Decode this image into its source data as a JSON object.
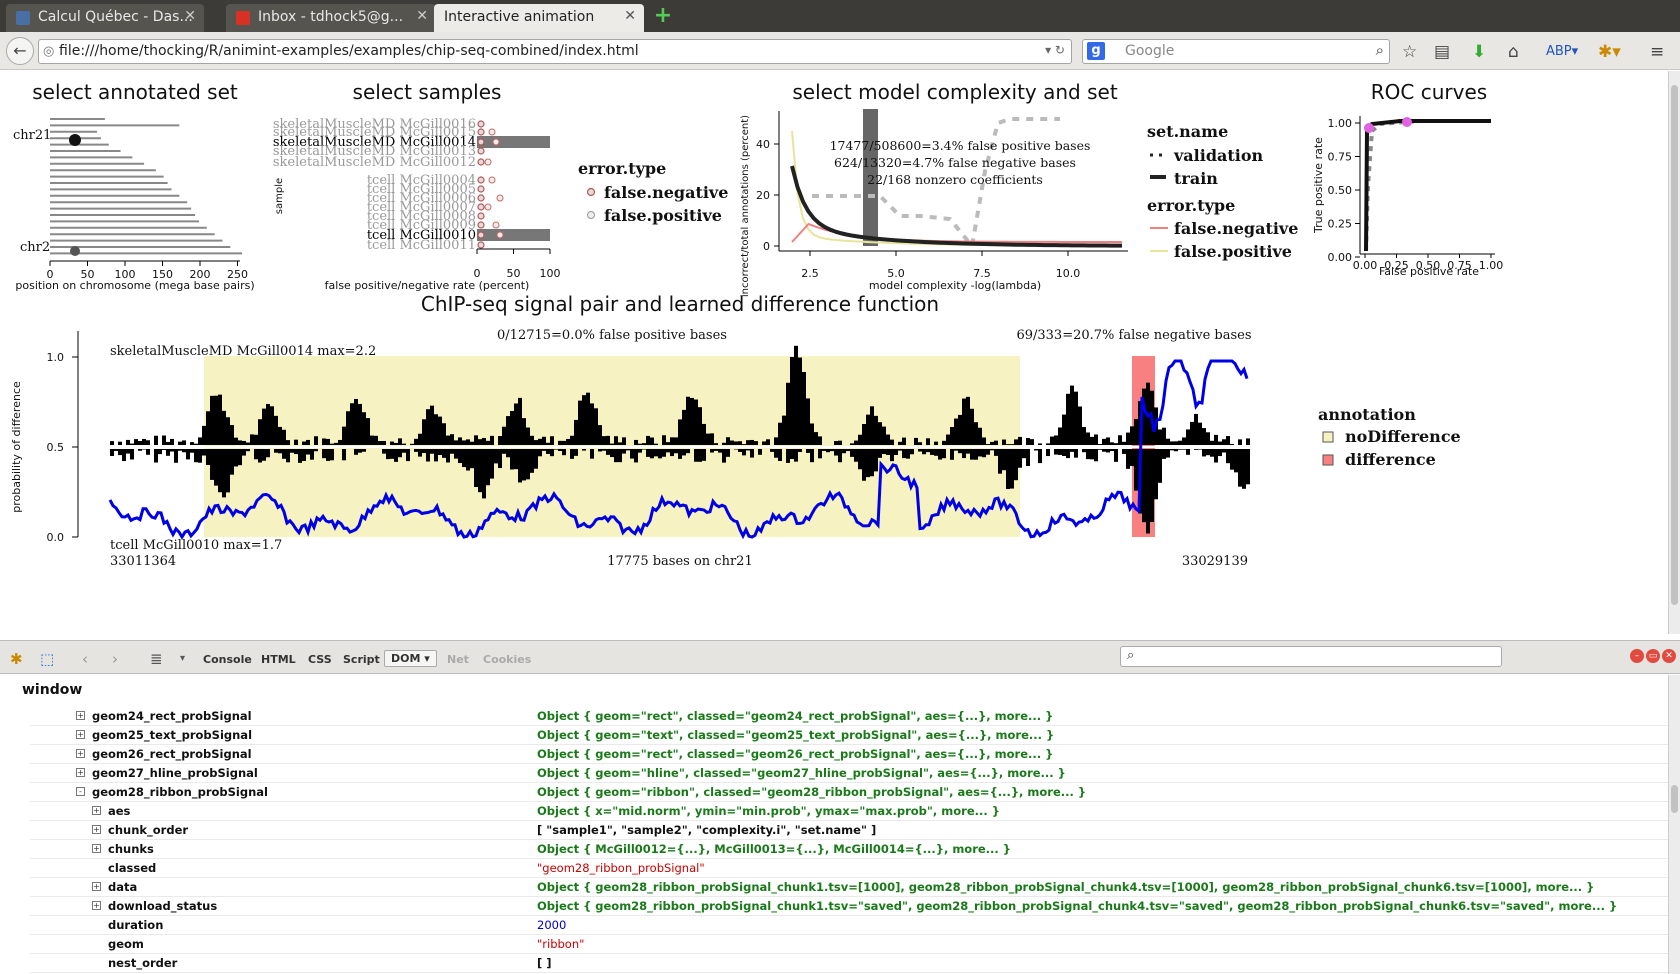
{
  "tabs": [
    {
      "label": "Calcul Québec - Das...",
      "active": false
    },
    {
      "label": "Inbox - tdhock5@g...",
      "active": false
    },
    {
      "label": "Interactive animation",
      "active": true
    }
  ],
  "nav": {
    "url": "file:///home/thocking/R/animint-examples/examples/chip-seq-combined/index.html",
    "search_placeholder": "Google"
  },
  "viz": {
    "annot_title": "select annotated set",
    "annot_xlabel": "position on chromosome (mega base pairs)",
    "annot_labels": [
      "chr21",
      "chr2"
    ],
    "annot_ticks": [
      "0",
      "50",
      "100",
      "150",
      "200",
      "250"
    ],
    "samples_title": "select samples",
    "samples_xlabel": "false positive/negative rate (percent)",
    "samples_ylabel": "sample",
    "samples_ticks": [
      "0",
      "50",
      "100"
    ],
    "sample_names": [
      "skeletalMuscleMD McGill0016",
      "skeletalMuscleMD McGill0015",
      "skeletalMuscleMD McGill0014",
      "skeletalMuscleMD McGill0013",
      "skeletalMuscleMD McGill0012",
      "tcell McGill0004",
      "tcell McGill0005",
      "tcell McGill0006",
      "tcell McGill0007",
      "tcell McGill0008",
      "tcell McGill0009",
      "tcell McGill0010",
      "tcell McGill0011"
    ],
    "error_legend_title": "error.type",
    "error_types": [
      "false.negative",
      "false.positive"
    ],
    "model_title": "select model complexity and set",
    "model_xlabel": "model complexity -log(lambda)",
    "model_ylabel": "incorrect/total annotations (percent)",
    "model_xticks": [
      "2.5",
      "5.0",
      "7.5",
      "10.0"
    ],
    "model_yticks": [
      "0",
      "20",
      "40"
    ],
    "model_text": [
      "17477/508600=3.4% false positive bases",
      "624/13320=4.7% false negative bases",
      "22/168 nonzero coefficients"
    ],
    "set_legend_title": "set.name",
    "set_names": [
      "validation",
      "train"
    ],
    "roc_title": "ROC curves",
    "roc_xlabel": "False positive rate",
    "roc_ylabel": "True positive rate",
    "roc_xticks": [
      "0.00",
      "0.25",
      "0.50",
      "0.75",
      "1.00"
    ],
    "roc_yticks": [
      "0.00",
      "0.25",
      "0.50",
      "0.75",
      "1.00"
    ],
    "signal_title": "ChIP-seq signal pair and learned difference function",
    "signal_fp_text": "0/12715=0.0% false positive bases",
    "signal_fn_text": "69/333=20.7% false negative bases",
    "signal_top_label": "skeletalMuscleMD McGill0014 max=2.2",
    "signal_bottom_label": "tcell McGill0010 max=1.7",
    "signal_left_pos": "33011364",
    "signal_right_pos": "33029139",
    "signal_bases_text": "17775 bases on chr21",
    "signal_ylabel": "probability of difference",
    "signal_yticks": [
      "0.0",
      "0.5",
      "1.0"
    ],
    "annotation_legend_title": "annotation",
    "annotation_types": [
      "noDifference",
      "difference"
    ]
  },
  "colors": {
    "noDifference": "#f6f2c1",
    "difference": "#f88080",
    "prob_line": "#0000e6",
    "false_negative": "#f08080",
    "false_positive": "#f2f2a0"
  },
  "devtools": {
    "tabs": [
      "Console",
      "HTML",
      "CSS",
      "Script",
      "DOM",
      "Net",
      "Cookies"
    ],
    "selected_tab": "DOM",
    "root_label": "window"
  },
  "dom_rows": [
    {
      "depth": 0,
      "toggle": "+",
      "key": "geom24_rect_probSignal",
      "type": "obj",
      "value": "Object { geom=\"rect\",  classed=\"geom24_rect_probSignal\",  aes={...},  more... }"
    },
    {
      "depth": 0,
      "toggle": "+",
      "key": "geom25_text_probSignal",
      "type": "obj",
      "value": "Object { geom=\"text\",  classed=\"geom25_text_probSignal\",  aes={...},  more... }"
    },
    {
      "depth": 0,
      "toggle": "+",
      "key": "geom26_rect_probSignal",
      "type": "obj",
      "value": "Object { geom=\"rect\",  classed=\"geom26_rect_probSignal\",  aes={...},  more... }"
    },
    {
      "depth": 0,
      "toggle": "+",
      "key": "geom27_hline_probSignal",
      "type": "obj",
      "value": "Object { geom=\"hline\",  classed=\"geom27_hline_probSignal\",  aes={...},  more... }"
    },
    {
      "depth": 0,
      "toggle": "-",
      "key": "geom28_ribbon_probSignal",
      "type": "obj",
      "value": "Object { geom=\"ribbon\",  classed=\"geom28_ribbon_probSignal\",  aes={...},  more... }"
    },
    {
      "depth": 1,
      "toggle": "+",
      "key": "aes",
      "type": "obj",
      "value": "Object { x=\"mid.norm\",  ymin=\"min.prob\",  ymax=\"max.prob\",  more... }"
    },
    {
      "depth": 1,
      "toggle": "+",
      "key": "chunk_order",
      "type": "arr",
      "value": "[ \"sample1\",  \"sample2\",  \"complexity.i\",  \"set.name\" ]"
    },
    {
      "depth": 1,
      "toggle": "+",
      "key": "chunks",
      "type": "obj",
      "value": "Object { McGill0012={...},  McGill0013={...},  McGill0014={...},  more... }"
    },
    {
      "depth": 1,
      "toggle": "",
      "key": "classed",
      "type": "str",
      "value": "\"geom28_ribbon_probSignal\""
    },
    {
      "depth": 1,
      "toggle": "+",
      "key": "data",
      "type": "obj",
      "value": "Object { geom28_ribbon_probSignal_chunk1.tsv=[1000],  geom28_ribbon_probSignal_chunk4.tsv=[1000],  geom28_ribbon_probSignal_chunk6.tsv=[1000],  more... }"
    },
    {
      "depth": 1,
      "toggle": "+",
      "key": "download_status",
      "type": "obj",
      "value": "Object { geom28_ribbon_probSignal_chunk1.tsv=\"saved\",  geom28_ribbon_probSignal_chunk4.tsv=\"saved\",  geom28_ribbon_probSignal_chunk6.tsv=\"saved\",  more... }"
    },
    {
      "depth": 1,
      "toggle": "",
      "key": "duration",
      "type": "num",
      "value": "2000"
    },
    {
      "depth": 1,
      "toggle": "",
      "key": "geom",
      "type": "str",
      "value": "\"ribbon\""
    },
    {
      "depth": 1,
      "toggle": "",
      "key": "nest_order",
      "type": "arr",
      "value": "[ ]"
    }
  ]
}
